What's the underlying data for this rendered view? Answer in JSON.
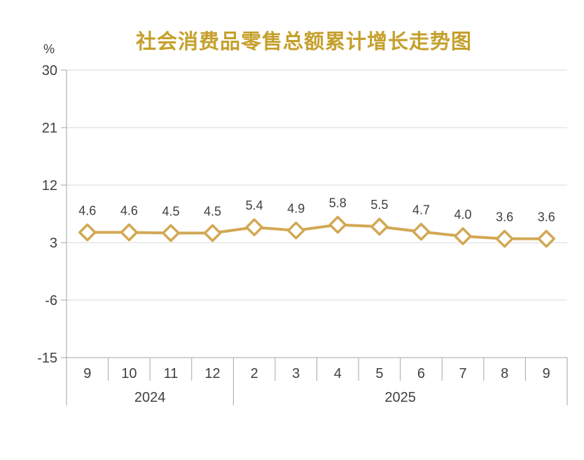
{
  "chart": {
    "title": "社会消费品零售总额累计增长走势图",
    "unit_label": "%",
    "colors": {
      "title": "#C6A02C",
      "line": "#D2A854",
      "marker_fill": "#FFFFFF",
      "grid": "#D9D9D9",
      "axis": "#A6A6A6",
      "text": "#404040"
    }
  },
  "chart_data": {
    "type": "line",
    "title": "社会消费品零售总额累计增长走势图",
    "ylabel": "%",
    "ylim": [
      -15,
      30
    ],
    "yticks": [
      30,
      21,
      12,
      3,
      -6,
      -15
    ],
    "grid": true,
    "legend": "none",
    "marker": "diamond",
    "data_labels": true,
    "categories": [
      "9",
      "10",
      "11",
      "12",
      "2",
      "3",
      "4",
      "5",
      "6",
      "7",
      "8",
      "9"
    ],
    "category_groups": [
      {
        "label": "2024",
        "span": 4
      },
      {
        "label": "2025",
        "span": 8
      }
    ],
    "values": [
      4.6,
      4.6,
      4.5,
      4.5,
      5.4,
      4.9,
      5.8,
      5.5,
      4.7,
      4.0,
      3.6,
      3.6
    ]
  }
}
